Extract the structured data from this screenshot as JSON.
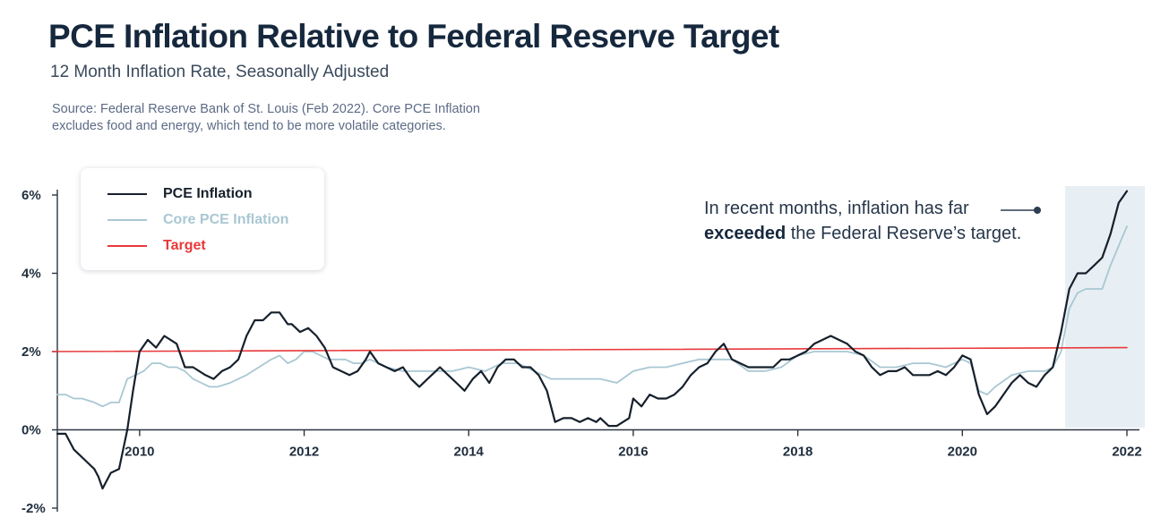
{
  "header": {
    "title": "PCE Inflation Relative to Federal Reserve Target",
    "subtitle": "12 Month Inflation Rate, Seasonally Adjusted",
    "source_line1": "Source: Federal Reserve Bank of St. Louis (Feb 2022). Core PCE Inflation",
    "source_line2": "excludes food and energy, which tend to be more volatile categories."
  },
  "annotation": {
    "text_line1": "In recent months, inflation has far",
    "text_bold": "exceeded",
    "text_rest": " the Federal Reserve’s target."
  },
  "colors": {
    "pce": "#16202c",
    "core": "#a9c7d3",
    "target": "#e8393a",
    "highlight": "#e7eff4",
    "axis": "#2a3543"
  },
  "chart_data": {
    "type": "line",
    "title": "PCE Inflation Relative to Federal Reserve Target",
    "subtitle": "12 Month Inflation Rate, Seasonally Adjusted",
    "xlabel": "",
    "ylabel": "",
    "xlim": [
      2009.0,
      2022.0
    ],
    "ylim": [
      -2,
      6
    ],
    "y_ticks": [
      -2,
      0,
      2,
      4,
      6
    ],
    "y_tick_labels": [
      "-2%",
      "0%",
      "2%",
      "4%",
      "6%"
    ],
    "x_ticks": [
      2010,
      2012,
      2014,
      2016,
      2018,
      2020,
      2022
    ],
    "x_tick_labels": [
      "2010",
      "2012",
      "2014",
      "2016",
      "2018",
      "2020",
      "2022"
    ],
    "grid": false,
    "legend_position": "top-left",
    "highlight_range": [
      2021.25,
      2022.0
    ],
    "series": [
      {
        "name": "PCE Inflation",
        "color": "#16202c",
        "points": [
          [
            2009.0,
            -0.1
          ],
          [
            2009.1,
            -0.1
          ],
          [
            2009.2,
            -0.5
          ],
          [
            2009.35,
            -0.8
          ],
          [
            2009.45,
            -1.0
          ],
          [
            2009.5,
            -1.2
          ],
          [
            2009.55,
            -1.5
          ],
          [
            2009.65,
            -1.1
          ],
          [
            2009.75,
            -1.0
          ],
          [
            2009.85,
            0.0
          ],
          [
            2009.92,
            1.0
          ],
          [
            2010.0,
            2.0
          ],
          [
            2010.1,
            2.3
          ],
          [
            2010.2,
            2.1
          ],
          [
            2010.3,
            2.4
          ],
          [
            2010.45,
            2.2
          ],
          [
            2010.55,
            1.6
          ],
          [
            2010.65,
            1.6
          ],
          [
            2010.8,
            1.4
          ],
          [
            2010.9,
            1.3
          ],
          [
            2011.0,
            1.5
          ],
          [
            2011.1,
            1.6
          ],
          [
            2011.2,
            1.8
          ],
          [
            2011.3,
            2.4
          ],
          [
            2011.4,
            2.8
          ],
          [
            2011.5,
            2.8
          ],
          [
            2011.6,
            3.0
          ],
          [
            2011.7,
            3.0
          ],
          [
            2011.8,
            2.7
          ],
          [
            2011.85,
            2.7
          ],
          [
            2011.95,
            2.5
          ],
          [
            2012.05,
            2.6
          ],
          [
            2012.15,
            2.4
          ],
          [
            2012.25,
            2.1
          ],
          [
            2012.35,
            1.6
          ],
          [
            2012.45,
            1.5
          ],
          [
            2012.55,
            1.4
          ],
          [
            2012.65,
            1.5
          ],
          [
            2012.75,
            1.8
          ],
          [
            2012.8,
            2.0
          ],
          [
            2012.9,
            1.7
          ],
          [
            2013.0,
            1.6
          ],
          [
            2013.1,
            1.5
          ],
          [
            2013.2,
            1.6
          ],
          [
            2013.3,
            1.3
          ],
          [
            2013.4,
            1.1
          ],
          [
            2013.5,
            1.3
          ],
          [
            2013.6,
            1.5
          ],
          [
            2013.65,
            1.6
          ],
          [
            2013.75,
            1.4
          ],
          [
            2013.85,
            1.2
          ],
          [
            2013.95,
            1.0
          ],
          [
            2014.05,
            1.3
          ],
          [
            2014.15,
            1.5
          ],
          [
            2014.25,
            1.2
          ],
          [
            2014.35,
            1.6
          ],
          [
            2014.45,
            1.8
          ],
          [
            2014.55,
            1.8
          ],
          [
            2014.65,
            1.6
          ],
          [
            2014.75,
            1.6
          ],
          [
            2014.85,
            1.4
          ],
          [
            2014.95,
            1.0
          ],
          [
            2015.05,
            0.2
          ],
          [
            2015.15,
            0.3
          ],
          [
            2015.25,
            0.3
          ],
          [
            2015.35,
            0.2
          ],
          [
            2015.45,
            0.3
          ],
          [
            2015.55,
            0.2
          ],
          [
            2015.6,
            0.3
          ],
          [
            2015.7,
            0.1
          ],
          [
            2015.8,
            0.1
          ],
          [
            2015.95,
            0.3
          ],
          [
            2016.0,
            0.8
          ],
          [
            2016.1,
            0.6
          ],
          [
            2016.2,
            0.9
          ],
          [
            2016.3,
            0.8
          ],
          [
            2016.4,
            0.8
          ],
          [
            2016.5,
            0.9
          ],
          [
            2016.6,
            1.1
          ],
          [
            2016.7,
            1.4
          ],
          [
            2016.8,
            1.6
          ],
          [
            2016.9,
            1.7
          ],
          [
            2017.0,
            2.0
          ],
          [
            2017.1,
            2.2
          ],
          [
            2017.2,
            1.8
          ],
          [
            2017.3,
            1.7
          ],
          [
            2017.4,
            1.6
          ],
          [
            2017.5,
            1.6
          ],
          [
            2017.6,
            1.6
          ],
          [
            2017.7,
            1.6
          ],
          [
            2017.8,
            1.8
          ],
          [
            2017.9,
            1.8
          ],
          [
            2018.0,
            1.9
          ],
          [
            2018.1,
            2.0
          ],
          [
            2018.2,
            2.2
          ],
          [
            2018.3,
            2.3
          ],
          [
            2018.4,
            2.4
          ],
          [
            2018.5,
            2.3
          ],
          [
            2018.6,
            2.2
          ],
          [
            2018.7,
            2.0
          ],
          [
            2018.8,
            1.9
          ],
          [
            2018.9,
            1.6
          ],
          [
            2019.0,
            1.4
          ],
          [
            2019.1,
            1.5
          ],
          [
            2019.2,
            1.5
          ],
          [
            2019.3,
            1.6
          ],
          [
            2019.4,
            1.4
          ],
          [
            2019.5,
            1.4
          ],
          [
            2019.6,
            1.4
          ],
          [
            2019.7,
            1.5
          ],
          [
            2019.8,
            1.4
          ],
          [
            2019.9,
            1.6
          ],
          [
            2020.0,
            1.9
          ],
          [
            2020.1,
            1.8
          ],
          [
            2020.2,
            0.9
          ],
          [
            2020.3,
            0.4
          ],
          [
            2020.4,
            0.6
          ],
          [
            2020.5,
            0.9
          ],
          [
            2020.6,
            1.2
          ],
          [
            2020.7,
            1.4
          ],
          [
            2020.8,
            1.2
          ],
          [
            2020.9,
            1.1
          ],
          [
            2021.0,
            1.4
          ],
          [
            2021.1,
            1.6
          ],
          [
            2021.2,
            2.5
          ],
          [
            2021.3,
            3.6
          ],
          [
            2021.4,
            4.0
          ],
          [
            2021.5,
            4.0
          ],
          [
            2021.6,
            4.2
          ],
          [
            2021.7,
            4.4
          ],
          [
            2021.8,
            5.0
          ],
          [
            2021.9,
            5.8
          ],
          [
            2022.0,
            6.1
          ]
        ]
      },
      {
        "name": "Core PCE Inflation",
        "color": "#a9c7d3",
        "points": [
          [
            2009.0,
            0.9
          ],
          [
            2009.1,
            0.9
          ],
          [
            2009.2,
            0.8
          ],
          [
            2009.3,
            0.8
          ],
          [
            2009.45,
            0.7
          ],
          [
            2009.55,
            0.6
          ],
          [
            2009.65,
            0.7
          ],
          [
            2009.75,
            0.7
          ],
          [
            2009.85,
            1.3
          ],
          [
            2009.95,
            1.4
          ],
          [
            2010.05,
            1.5
          ],
          [
            2010.15,
            1.7
          ],
          [
            2010.25,
            1.7
          ],
          [
            2010.35,
            1.6
          ],
          [
            2010.45,
            1.6
          ],
          [
            2010.55,
            1.5
          ],
          [
            2010.65,
            1.3
          ],
          [
            2010.75,
            1.2
          ],
          [
            2010.85,
            1.1
          ],
          [
            2010.95,
            1.1
          ],
          [
            2011.1,
            1.2
          ],
          [
            2011.2,
            1.3
          ],
          [
            2011.3,
            1.4
          ],
          [
            2011.45,
            1.6
          ],
          [
            2011.6,
            1.8
          ],
          [
            2011.7,
            1.9
          ],
          [
            2011.8,
            1.7
          ],
          [
            2011.9,
            1.8
          ],
          [
            2012.0,
            2.0
          ],
          [
            2012.1,
            2.0
          ],
          [
            2012.2,
            1.9
          ],
          [
            2012.3,
            1.8
          ],
          [
            2012.4,
            1.8
          ],
          [
            2012.5,
            1.8
          ],
          [
            2012.6,
            1.7
          ],
          [
            2012.7,
            1.7
          ],
          [
            2012.8,
            1.8
          ],
          [
            2012.9,
            1.7
          ],
          [
            2013.0,
            1.6
          ],
          [
            2013.2,
            1.5
          ],
          [
            2013.4,
            1.5
          ],
          [
            2013.6,
            1.5
          ],
          [
            2013.8,
            1.5
          ],
          [
            2014.0,
            1.6
          ],
          [
            2014.2,
            1.5
          ],
          [
            2014.4,
            1.7
          ],
          [
            2014.6,
            1.7
          ],
          [
            2014.8,
            1.5
          ],
          [
            2015.0,
            1.3
          ],
          [
            2015.2,
            1.3
          ],
          [
            2015.4,
            1.3
          ],
          [
            2015.6,
            1.3
          ],
          [
            2015.8,
            1.2
          ],
          [
            2016.0,
            1.5
          ],
          [
            2016.2,
            1.6
          ],
          [
            2016.4,
            1.6
          ],
          [
            2016.6,
            1.7
          ],
          [
            2016.8,
            1.8
          ],
          [
            2017.0,
            1.8
          ],
          [
            2017.2,
            1.8
          ],
          [
            2017.4,
            1.5
          ],
          [
            2017.6,
            1.5
          ],
          [
            2017.8,
            1.6
          ],
          [
            2018.0,
            1.9
          ],
          [
            2018.2,
            2.0
          ],
          [
            2018.4,
            2.0
          ],
          [
            2018.6,
            2.0
          ],
          [
            2018.8,
            1.9
          ],
          [
            2019.0,
            1.6
          ],
          [
            2019.2,
            1.6
          ],
          [
            2019.4,
            1.7
          ],
          [
            2019.6,
            1.7
          ],
          [
            2019.8,
            1.6
          ],
          [
            2020.0,
            1.8
          ],
          [
            2020.1,
            1.7
          ],
          [
            2020.2,
            1.0
          ],
          [
            2020.3,
            0.9
          ],
          [
            2020.4,
            1.1
          ],
          [
            2020.6,
            1.4
          ],
          [
            2020.8,
            1.5
          ],
          [
            2021.0,
            1.5
          ],
          [
            2021.1,
            1.6
          ],
          [
            2021.2,
            2.0
          ],
          [
            2021.3,
            3.1
          ],
          [
            2021.4,
            3.5
          ],
          [
            2021.5,
            3.6
          ],
          [
            2021.6,
            3.6
          ],
          [
            2021.7,
            3.6
          ],
          [
            2021.8,
            4.2
          ],
          [
            2021.9,
            4.7
          ],
          [
            2022.0,
            5.2
          ]
        ]
      },
      {
        "name": "Target",
        "color": "#e8393a",
        "points": [
          [
            2009.0,
            2.0
          ],
          [
            2022.0,
            2.0
          ]
        ]
      }
    ]
  }
}
